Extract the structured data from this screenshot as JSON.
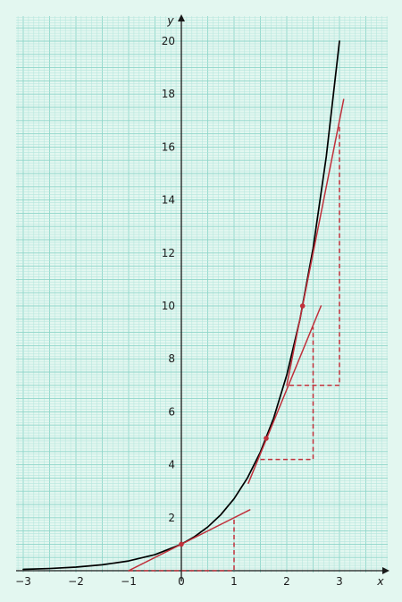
{
  "colors": {
    "background": "#e3f7f0",
    "grid_minor": "#b4e6dd",
    "grid_major": "#8fd6ca",
    "axes": "#1a1a1a",
    "curve": "#000000",
    "tangent": "#c0303b"
  },
  "chart_data": {
    "type": "line",
    "title": "",
    "xlabel": "x",
    "ylabel": "y",
    "xlim": [
      -3,
      3.7
    ],
    "ylim": [
      0,
      21
    ],
    "grid": true,
    "x_ticks": [
      -3,
      -2,
      -1,
      0,
      1,
      2,
      3
    ],
    "x_tick_labels": [
      "−3",
      "−2",
      "−1",
      "0",
      "1",
      "2",
      "3"
    ],
    "y_ticks": [
      2,
      4,
      6,
      8,
      10,
      12,
      14,
      16,
      18,
      20
    ],
    "y_tick_labels": [
      "2",
      "4",
      "6",
      "8",
      "10",
      "12",
      "14",
      "16",
      "18",
      "20"
    ],
    "series": [
      {
        "kind": "curve",
        "description": "y = e^x",
        "x": [
          -3,
          -2.5,
          -2,
          -1.5,
          -1,
          -0.5,
          0,
          0.25,
          0.5,
          0.75,
          1,
          1.25,
          1.5,
          1.75,
          2,
          2.25,
          2.5,
          2.75,
          3
        ],
        "y": [
          0.05,
          0.082,
          0.135,
          0.223,
          0.368,
          0.607,
          1,
          1.284,
          1.649,
          2.117,
          2.718,
          3.49,
          4.482,
          5.755,
          7.389,
          9.488,
          12.182,
          15.643,
          20.0
        ]
      },
      {
        "kind": "tangent",
        "touch_point": [
          0,
          1
        ],
        "x": [
          -1,
          1.3
        ],
        "y": [
          0,
          2.3
        ]
      },
      {
        "kind": "tangent",
        "touch_point": [
          1.61,
          5
        ],
        "x": [
          1.27,
          2.65
        ],
        "y": [
          3.3,
          10.0
        ]
      },
      {
        "kind": "tangent",
        "touch_point": [
          2.3,
          10
        ],
        "x": [
          2.0,
          3.08
        ],
        "y": [
          7.0,
          17.8
        ]
      }
    ],
    "points": [
      {
        "x": 0,
        "y": 1
      },
      {
        "x": 1.61,
        "y": 5
      },
      {
        "x": 2.3,
        "y": 10
      }
    ],
    "gradient_triangles": [
      {
        "run_from": -1,
        "run_to": 1,
        "y_base": 0,
        "rise_to": 2
      },
      {
        "run_from": 1.5,
        "run_to": 2.5,
        "y_base": 4.2,
        "rise_to": 9.2
      },
      {
        "run_from": 2.05,
        "run_to": 3.0,
        "y_base": 7.0,
        "rise_to": 16.8
      }
    ]
  }
}
